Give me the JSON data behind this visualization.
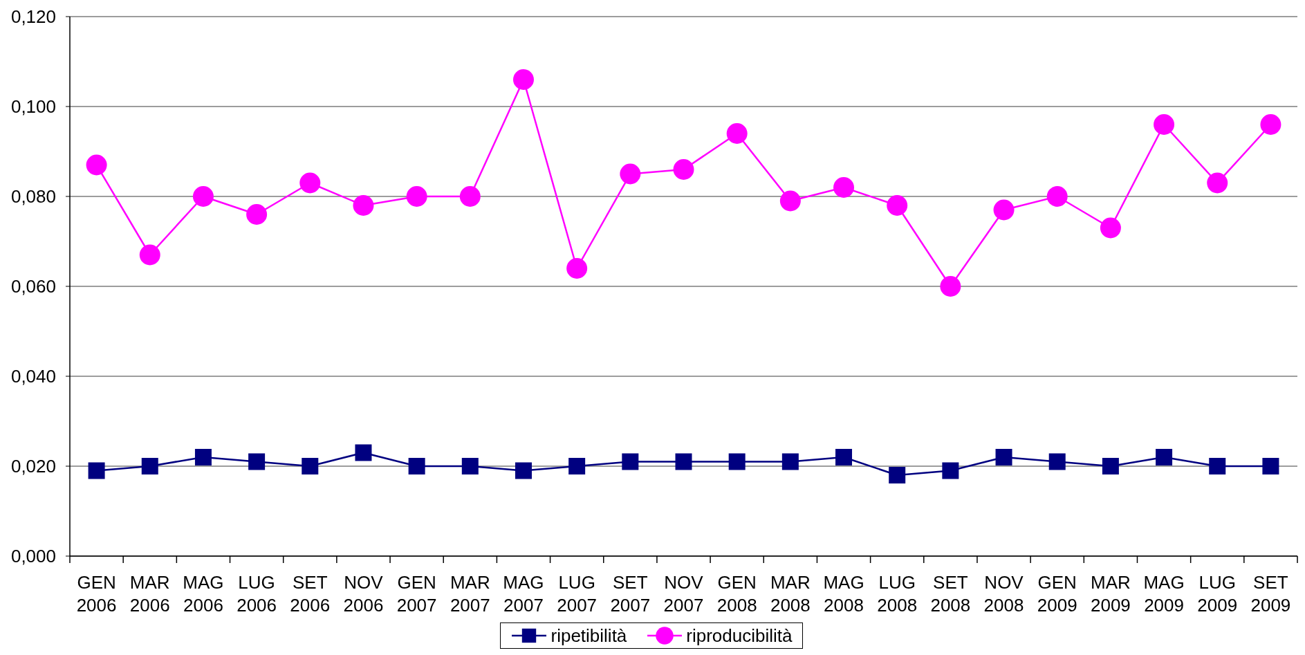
{
  "chart_data": {
    "type": "line",
    "categories": [
      "GEN 2006",
      "MAR 2006",
      "MAG 2006",
      "LUG 2006",
      "SET 2006",
      "NOV 2006",
      "GEN 2007",
      "MAR 2007",
      "MAG 2007",
      "LUG 2007",
      "SET 2007",
      "NOV 2007",
      "GEN 2008",
      "MAR 2008",
      "MAG 2008",
      "LUG 2008",
      "SET 2008",
      "NOV 2008",
      "GEN 2009",
      "MAR 2009",
      "MAG 2009",
      "LUG 2009",
      "SET 2009"
    ],
    "series": [
      {
        "name": "ripetibilità",
        "color": "#000080",
        "marker": "square",
        "values": [
          0.019,
          0.02,
          0.022,
          0.021,
          0.02,
          0.023,
          0.02,
          0.02,
          0.019,
          0.02,
          0.021,
          0.021,
          0.021,
          0.021,
          0.022,
          0.018,
          0.019,
          0.022,
          0.021,
          0.02,
          0.022,
          0.02,
          0.02
        ]
      },
      {
        "name": "riproducibilità",
        "color": "#ff00ff",
        "marker": "circle",
        "values": [
          0.087,
          0.067,
          0.08,
          0.076,
          0.083,
          0.078,
          0.08,
          0.08,
          0.106,
          0.064,
          0.085,
          0.086,
          0.094,
          0.079,
          0.082,
          0.078,
          0.06,
          0.077,
          0.08,
          0.073,
          0.096,
          0.083,
          0.096
        ]
      }
    ],
    "ylim": [
      0,
      0.12
    ],
    "yticks": [
      {
        "value": 0,
        "label": "0,000"
      },
      {
        "value": 0.02,
        "label": "0,020"
      },
      {
        "value": 0.04,
        "label": "0,040"
      },
      {
        "value": 0.06,
        "label": "0,060"
      },
      {
        "value": 0.08,
        "label": "0,080"
      },
      {
        "value": 0.1,
        "label": "0,100"
      },
      {
        "value": 0.12,
        "label": "0,120"
      }
    ],
    "grid": "y",
    "legend": "bottom"
  }
}
